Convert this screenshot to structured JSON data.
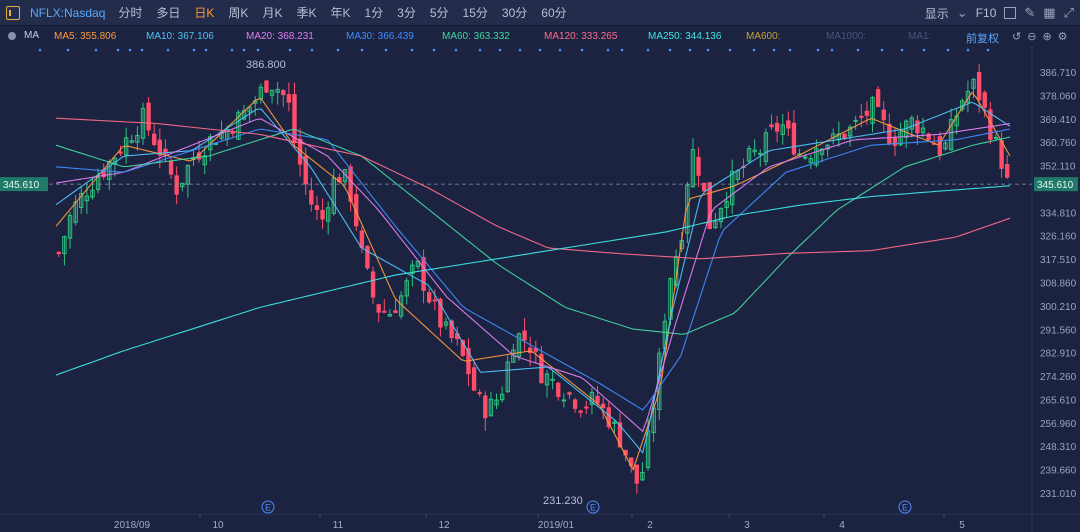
{
  "toolbar": {
    "symbol": "NFLX:Nasdaq",
    "periods": [
      "分时",
      "多日",
      "日K",
      "周K",
      "月K",
      "季K",
      "年K",
      "1分",
      "3分",
      "5分",
      "15分",
      "30分",
      "60分"
    ],
    "active_period": "日K",
    "display_label": "显示",
    "f10_label": "F10"
  },
  "ma_bar": {
    "title": "MA",
    "items": [
      {
        "label": "MA5: 355.806",
        "color": "#ff9a3c"
      },
      {
        "label": "MA10: 367.106",
        "color": "#4fc3f7"
      },
      {
        "label": "MA20: 368.231",
        "color": "#e27ef2"
      },
      {
        "label": "MA30: 366.439",
        "color": "#3f8cff"
      },
      {
        "label": "MA60: 363.332",
        "color": "#41d6a0"
      },
      {
        "label": "MA120: 333.265",
        "color": "#ff6b8a"
      },
      {
        "label": "MA250: 344.136",
        "color": "#3ee6e6"
      },
      {
        "label": "MA600:",
        "color": "#c8a33a"
      },
      {
        "label": "MA1000:",
        "color": "#4a5478"
      },
      {
        "label": "MA1:",
        "color": "#4a5478"
      }
    ],
    "adjust_label": "前复权"
  },
  "chart_data": {
    "type": "candlestick",
    "symbol": "NFLX:Nasdaq",
    "period": "日K",
    "y_ticks": [
      "386.710",
      "378.060",
      "369.410",
      "360.760",
      "352.110",
      "345.610",
      "334.810",
      "326.160",
      "317.510",
      "308.860",
      "300.210",
      "291.560",
      "282.910",
      "274.260",
      "265.610",
      "256.960",
      "248.310",
      "239.660",
      "231.010"
    ],
    "ylim": [
      231.01,
      386.71
    ],
    "current_price": 345.61,
    "x_labels": [
      "2018/09",
      "10",
      "11",
      "12",
      "2019/01",
      "2",
      "3",
      "4",
      "5"
    ],
    "annotations": {
      "high": {
        "label": "386.800",
        "value": 386.8
      },
      "low": {
        "label": "231.230",
        "value": 231.23
      }
    },
    "earnings_marker": "E",
    "series": [
      {
        "name": "MA5",
        "color": "#ff9a3c",
        "last": 355.806
      },
      {
        "name": "MA10",
        "color": "#4fc3f7",
        "last": 367.106
      },
      {
        "name": "MA20",
        "color": "#e27ef2",
        "last": 368.231
      },
      {
        "name": "MA30",
        "color": "#3f8cff",
        "last": 366.439
      },
      {
        "name": "MA60",
        "color": "#41d6a0",
        "last": 363.332
      },
      {
        "name": "MA120",
        "color": "#ff6b8a",
        "last": 333.265
      },
      {
        "name": "MA250",
        "color": "#3ee6e6",
        "last": 344.136
      }
    ],
    "close_path": [
      [
        0,
        320
      ],
      [
        8,
        336
      ],
      [
        18,
        345
      ],
      [
        28,
        352
      ],
      [
        40,
        362
      ],
      [
        50,
        370
      ],
      [
        60,
        358
      ],
      [
        70,
        344
      ],
      [
        80,
        356
      ],
      [
        90,
        362
      ],
      [
        100,
        366
      ],
      [
        110,
        372
      ],
      [
        118,
        378
      ],
      [
        124,
        384
      ],
      [
        130,
        381
      ],
      [
        136,
        376
      ],
      [
        140,
        360
      ],
      [
        146,
        346
      ],
      [
        150,
        338
      ],
      [
        156,
        332
      ],
      [
        162,
        346
      ],
      [
        168,
        350
      ],
      [
        174,
        340
      ],
      [
        180,
        318
      ],
      [
        188,
        300
      ],
      [
        196,
        298
      ],
      [
        204,
        305
      ],
      [
        212,
        316
      ],
      [
        220,
        303
      ],
      [
        228,
        292
      ],
      [
        236,
        286
      ],
      [
        242,
        278
      ],
      [
        248,
        266
      ],
      [
        254,
        262
      ],
      [
        262,
        268
      ],
      [
        270,
        290
      ],
      [
        278,
        288
      ],
      [
        286,
        276
      ],
      [
        294,
        272
      ],
      [
        302,
        268
      ],
      [
        310,
        264
      ],
      [
        318,
        266
      ],
      [
        326,
        259
      ],
      [
        334,
        250
      ],
      [
        340,
        238
      ],
      [
        344,
        234
      ],
      [
        348,
        246
      ],
      [
        352,
        262
      ],
      [
        356,
        281
      ],
      [
        360,
        302
      ],
      [
        364,
        318
      ],
      [
        368,
        322
      ],
      [
        372,
        346
      ],
      [
        376,
        358
      ],
      [
        380,
        350
      ],
      [
        386,
        330
      ],
      [
        392,
        338
      ],
      [
        398,
        346
      ],
      [
        404,
        350
      ],
      [
        410,
        356
      ],
      [
        416,
        358
      ],
      [
        422,
        364
      ],
      [
        428,
        368
      ],
      [
        434,
        362
      ],
      [
        440,
        356
      ],
      [
        446,
        358
      ],
      [
        452,
        362
      ],
      [
        458,
        361
      ],
      [
        464,
        364
      ],
      [
        470,
        366
      ],
      [
        476,
        370
      ],
      [
        482,
        374
      ],
      [
        488,
        368
      ],
      [
        494,
        362
      ],
      [
        500,
        366
      ],
      [
        506,
        369
      ],
      [
        512,
        366
      ],
      [
        518,
        362
      ],
      [
        524,
        357
      ],
      [
        530,
        368
      ],
      [
        536,
        378
      ],
      [
        542,
        382
      ],
      [
        546,
        378
      ],
      [
        550,
        370
      ],
      [
        554,
        362
      ],
      [
        558,
        356
      ],
      [
        562,
        346
      ]
    ],
    "ma_paths": {
      "MA5": [
        [
          0,
          330
        ],
        [
          40,
          360
        ],
        [
          80,
          354
        ],
        [
          120,
          378
        ],
        [
          140,
          360
        ],
        [
          170,
          345
        ],
        [
          200,
          303
        ],
        [
          240,
          280
        ],
        [
          280,
          284
        ],
        [
          320,
          264
        ],
        [
          340,
          240
        ],
        [
          356,
          270
        ],
        [
          372,
          340
        ],
        [
          400,
          345
        ],
        [
          440,
          357
        ],
        [
          480,
          370
        ],
        [
          520,
          360
        ],
        [
          540,
          380
        ],
        [
          562,
          356
        ]
      ],
      "MA10": [
        [
          0,
          338
        ],
        [
          40,
          356
        ],
        [
          80,
          358
        ],
        [
          120,
          374
        ],
        [
          150,
          352
        ],
        [
          180,
          322
        ],
        [
          220,
          308
        ],
        [
          250,
          276
        ],
        [
          290,
          278
        ],
        [
          330,
          258
        ],
        [
          346,
          246
        ],
        [
          362,
          296
        ],
        [
          380,
          342
        ],
        [
          420,
          358
        ],
        [
          460,
          362
        ],
        [
          500,
          366
        ],
        [
          540,
          376
        ],
        [
          562,
          367
        ]
      ],
      "MA20": [
        [
          0,
          346
        ],
        [
          40,
          350
        ],
        [
          80,
          360
        ],
        [
          120,
          370
        ],
        [
          160,
          356
        ],
        [
          190,
          336
        ],
        [
          230,
          304
        ],
        [
          270,
          282
        ],
        [
          310,
          274
        ],
        [
          346,
          254
        ],
        [
          366,
          296
        ],
        [
          386,
          336
        ],
        [
          420,
          352
        ],
        [
          470,
          362
        ],
        [
          520,
          364
        ],
        [
          562,
          368
        ]
      ],
      "MA30": [
        [
          0,
          352
        ],
        [
          40,
          350
        ],
        [
          80,
          358
        ],
        [
          120,
          366
        ],
        [
          160,
          362
        ],
        [
          200,
          330
        ],
        [
          240,
          300
        ],
        [
          280,
          286
        ],
        [
          320,
          272
        ],
        [
          346,
          262
        ],
        [
          368,
          282
        ],
        [
          392,
          328
        ],
        [
          430,
          350
        ],
        [
          480,
          360
        ],
        [
          530,
          362
        ],
        [
          562,
          366
        ]
      ],
      "MA60": [
        [
          0,
          360
        ],
        [
          40,
          352
        ],
        [
          90,
          356
        ],
        [
          140,
          366
        ],
        [
          180,
          356
        ],
        [
          220,
          336
        ],
        [
          260,
          316
        ],
        [
          300,
          300
        ],
        [
          340,
          292
        ],
        [
          370,
          290
        ],
        [
          400,
          298
        ],
        [
          430,
          318
        ],
        [
          460,
          336
        ],
        [
          500,
          352
        ],
        [
          540,
          360
        ],
        [
          562,
          363
        ]
      ],
      "MA120": [
        [
          0,
          370
        ],
        [
          60,
          368
        ],
        [
          120,
          364
        ],
        [
          180,
          356
        ],
        [
          220,
          344
        ],
        [
          260,
          330
        ],
        [
          290,
          322
        ],
        [
          330,
          320
        ],
        [
          380,
          318
        ],
        [
          430,
          320
        ],
        [
          480,
          321
        ],
        [
          530,
          326
        ],
        [
          562,
          333
        ]
      ],
      "MA250": [
        [
          0,
          275
        ],
        [
          40,
          284
        ],
        [
          80,
          292
        ],
        [
          120,
          300
        ],
        [
          160,
          306
        ],
        [
          200,
          312
        ],
        [
          240,
          316
        ],
        [
          280,
          320
        ],
        [
          320,
          324
        ],
        [
          360,
          328
        ],
        [
          400,
          334
        ],
        [
          440,
          338
        ],
        [
          480,
          341
        ],
        [
          520,
          343
        ],
        [
          562,
          345
        ]
      ]
    },
    "grid": false,
    "legend": "top"
  }
}
